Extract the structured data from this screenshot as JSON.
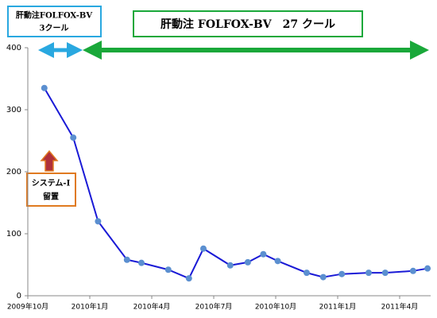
{
  "chart_data": {
    "type": "line",
    "annotations": [
      [
        "肝動注FOLFOX-BV",
        "3クール"
      ],
      [
        "肝動注 FOLFOX-BV　27 クール"
      ],
      [
        "システム-I",
        "留置"
      ]
    ],
    "x": [
      0.8,
      2.2,
      3.4,
      4.8,
      5.5,
      6.8,
      7.8,
      8.5,
      9.8,
      10.65,
      11.4,
      12.1,
      13.5,
      14.3,
      15.2,
      16.5,
      17.3,
      18.65,
      19.35
    ],
    "series": [
      {
        "color": "#1a1ad6",
        "marker_color": "#5b8fd0",
        "values": [
          335,
          255,
          120,
          58,
          53,
          42,
          28,
          76,
          49,
          54,
          67,
          56,
          37,
          30,
          35,
          37,
          37,
          40,
          44
        ]
      }
    ],
    "xlim": [
      0,
      19.5
    ],
    "xticks": [
      {
        "value": 0,
        "label": "2009年10月"
      },
      {
        "value": 3,
        "label": "2010年1月"
      },
      {
        "value": 6,
        "label": "2010年4月"
      },
      {
        "value": 9,
        "label": "2010年7月"
      },
      {
        "value": 12,
        "label": "2010年10月"
      },
      {
        "value": 15,
        "label": "2011年1月"
      },
      {
        "value": 18,
        "label": "2011年4月"
      }
    ],
    "ylim": [
      0,
      400
    ],
    "yticks": [
      0,
      100,
      200,
      300,
      400
    ]
  }
}
